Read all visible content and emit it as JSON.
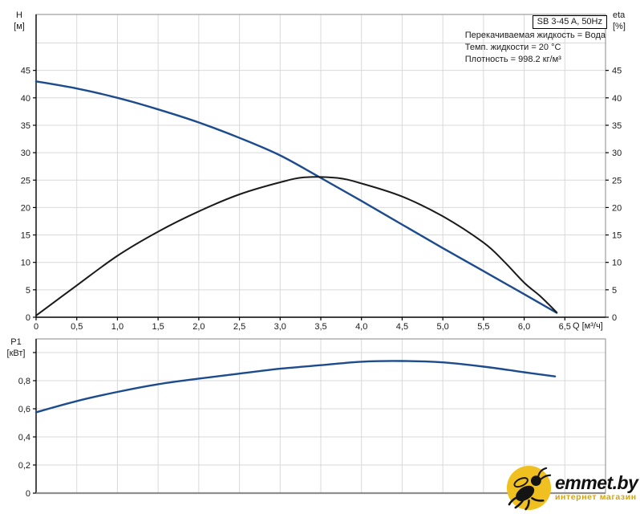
{
  "header": {
    "title_box": "SB 3-45 A, 50Hz",
    "annotations": [
      "Перекачиваемая жидкость = Вода",
      "Темп. жидкости = 20 °C",
      "Плотность = 998.2 кг/м³"
    ]
  },
  "colors": {
    "curve_blue": "#1c4b8e",
    "curve_black": "#1a1a1a",
    "grid": "#d9d9d9",
    "border": "#8a8a8a",
    "axis": "#000000",
    "logo_circle": "#f0c020",
    "logo_brand": "#111111",
    "logo_subtitle": "#d8a400"
  },
  "chart_data": [
    {
      "type": "line",
      "title": "SB 3-45 A, 50Hz",
      "xlabel": "Q [м³/ч]",
      "ylabel_left": "H [м]",
      "ylabel_left_lines": [
        "H",
        "[м]"
      ],
      "ylabel_right": "eta [%]",
      "ylabel_right_lines": [
        "eta",
        "[%]"
      ],
      "xlim": [
        0,
        7
      ],
      "ylim": [
        0,
        55.2
      ],
      "grid": true,
      "legend": "none",
      "grid_x": [
        0.5,
        1,
        1.5,
        2,
        2.5,
        3,
        3.5,
        4,
        4.5,
        5,
        5.5,
        6,
        6.5
      ],
      "grid_y": [
        5,
        10,
        15,
        20,
        25,
        30,
        35,
        40,
        45,
        50
      ],
      "x_ticks": [
        [
          0,
          "0"
        ],
        [
          0.5,
          "0,5"
        ],
        [
          1,
          "1,0"
        ],
        [
          1.5,
          "1,5"
        ],
        [
          2,
          "2,0"
        ],
        [
          2.5,
          "2,5"
        ],
        [
          3,
          "3,0"
        ],
        [
          3.5,
          "3,5"
        ],
        [
          4,
          "4,0"
        ],
        [
          4.5,
          "4,5"
        ],
        [
          5,
          "5,0"
        ],
        [
          5.5,
          "5,5"
        ],
        [
          6,
          "6,0"
        ],
        [
          6.5,
          "6,5"
        ]
      ],
      "y_ticks": [
        [
          0,
          "0"
        ],
        [
          5,
          "5"
        ],
        [
          10,
          "10"
        ],
        [
          15,
          "15"
        ],
        [
          20,
          "20"
        ],
        [
          25,
          "25"
        ],
        [
          30,
          "30"
        ],
        [
          35,
          "35"
        ],
        [
          40,
          "40"
        ],
        [
          45,
          "45"
        ]
      ],
      "mirror_right": true,
      "series": [
        {
          "name": "H-Q",
          "axis": "left",
          "points": [
            [
              0,
              43
            ],
            [
              0.5,
              41.7
            ],
            [
              1,
              40
            ],
            [
              1.5,
              37.9
            ],
            [
              2,
              35.5
            ],
            [
              2.5,
              32.7
            ],
            [
              3,
              29.5
            ],
            [
              3.5,
              25.4
            ],
            [
              4,
              21.2
            ],
            [
              4.5,
              16.9
            ],
            [
              5,
              12.6
            ],
            [
              5.5,
              8.4
            ],
            [
              6,
              4.2
            ],
            [
              6.4,
              0.8
            ]
          ]
        },
        {
          "name": "eta",
          "axis": "right",
          "points": [
            [
              0,
              0.3
            ],
            [
              0.5,
              5.8
            ],
            [
              1,
              11.2
            ],
            [
              1.5,
              15.6
            ],
            [
              2,
              19.3
            ],
            [
              2.5,
              22.4
            ],
            [
              3,
              24.6
            ],
            [
              3.3,
              25.5
            ],
            [
              3.7,
              25.4
            ],
            [
              4,
              24.4
            ],
            [
              4.5,
              22
            ],
            [
              5,
              18.4
            ],
            [
              5.5,
              13.6
            ],
            [
              5.75,
              10.2
            ],
            [
              6,
              6.3
            ],
            [
              6.2,
              3.8
            ],
            [
              6.4,
              0.9
            ]
          ]
        }
      ]
    },
    {
      "type": "line",
      "xlabel": "",
      "ylabel_left": "P1 [кВт]",
      "ylabel_left_lines": [
        "P1",
        "[кВт]"
      ],
      "xlim": [
        0,
        7
      ],
      "ylim": [
        0,
        1.097
      ],
      "grid": true,
      "legend": "none",
      "grid_x": [
        0.5,
        1,
        1.5,
        2,
        2.5,
        3,
        3.5,
        4,
        4.5,
        5,
        5.5,
        6,
        6.5
      ],
      "grid_y": [
        0.2,
        0.4,
        0.6,
        0.8,
        1.0
      ],
      "x_ticks": [],
      "y_ticks": [
        [
          0,
          "0"
        ],
        [
          0.2,
          "0,2"
        ],
        [
          0.4,
          "0,4"
        ],
        [
          0.6,
          "0,6"
        ],
        [
          0.8,
          "0,8"
        ],
        [
          1,
          ""
        ]
      ],
      "mirror_right": false,
      "series": [
        {
          "name": "P1",
          "axis": "left",
          "points": [
            [
              0,
              0.575
            ],
            [
              0.5,
              0.655
            ],
            [
              1,
              0.72
            ],
            [
              1.5,
              0.775
            ],
            [
              2,
              0.815
            ],
            [
              2.5,
              0.85
            ],
            [
              3,
              0.885
            ],
            [
              3.5,
              0.91
            ],
            [
              4,
              0.935
            ],
            [
              4.5,
              0.94
            ],
            [
              5,
              0.93
            ],
            [
              5.5,
              0.9
            ],
            [
              6,
              0.86
            ],
            [
              6.38,
              0.83
            ]
          ]
        }
      ]
    }
  ],
  "logo": {
    "brand": "emmet.by",
    "subtitle": "интернет магазин"
  }
}
